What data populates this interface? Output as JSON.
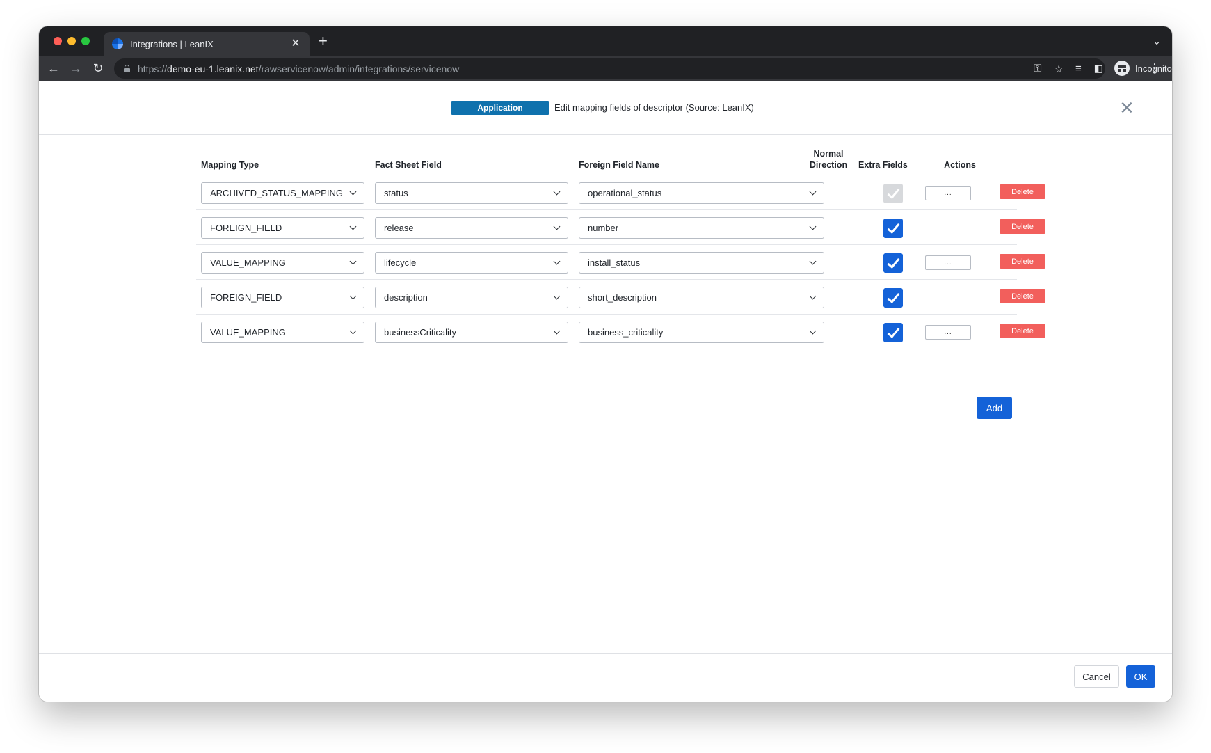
{
  "browser": {
    "tab_title": "Integrations | LeanIX",
    "tab_close": "✕",
    "new_tab": "+",
    "url_scheme": "https://",
    "url_host": "demo-eu-1.leanix.net",
    "url_path": "/rawservicenow/admin/integrations/servicenow",
    "profile_label": "Incognito",
    "icons": {
      "back": "back-arrow-icon",
      "forward": "forward-arrow-icon",
      "reload": "reload-icon",
      "lock": "lock-icon",
      "key": "key-icon",
      "star": "star-icon",
      "reading_list": "reading-list-icon",
      "side_panel": "side-panel-icon",
      "menu": "kebab-menu-icon"
    }
  },
  "dialog": {
    "fact_sheet_badge": "Application",
    "title": "Edit mapping fields of descriptor (Source: LeanIX)",
    "close_label": "✕"
  },
  "table": {
    "headers": {
      "mapping_type": "Mapping Type",
      "fact_sheet_field": "Fact Sheet Field",
      "foreign_field_name": "Foreign Field Name",
      "normal_direction_line1": "Normal",
      "normal_direction_line2": "Direction",
      "extra_fields": "Extra Fields",
      "actions": "Actions"
    },
    "rows": [
      {
        "mapping_type": "ARCHIVED_STATUS_MAPPING",
        "fact_sheet_field": "status",
        "foreign_field": "operational_status",
        "normal_direction": true,
        "direction_disabled": true,
        "has_extra_fields": true,
        "extra_label": "...",
        "delete_label": "Delete"
      },
      {
        "mapping_type": "FOREIGN_FIELD",
        "fact_sheet_field": "release",
        "foreign_field": "number",
        "normal_direction": true,
        "direction_disabled": false,
        "has_extra_fields": false,
        "extra_label": "",
        "delete_label": "Delete"
      },
      {
        "mapping_type": "VALUE_MAPPING",
        "fact_sheet_field": "lifecycle",
        "foreign_field": "install_status",
        "normal_direction": true,
        "direction_disabled": false,
        "has_extra_fields": true,
        "extra_label": "...",
        "delete_label": "Delete"
      },
      {
        "mapping_type": "FOREIGN_FIELD",
        "fact_sheet_field": "description",
        "foreign_field": "short_description",
        "normal_direction": true,
        "direction_disabled": false,
        "has_extra_fields": false,
        "extra_label": "",
        "delete_label": "Delete"
      },
      {
        "mapping_type": "VALUE_MAPPING",
        "fact_sheet_field": "businessCriticality",
        "foreign_field": "business_criticality",
        "normal_direction": true,
        "direction_disabled": false,
        "has_extra_fields": true,
        "extra_label": "...",
        "delete_label": "Delete"
      }
    ],
    "add_label": "Add"
  },
  "footer": {
    "cancel_label": "Cancel",
    "ok_label": "OK"
  },
  "colors": {
    "badge": "#0f71ad",
    "primary": "#1462d8",
    "danger": "#f25f5c"
  }
}
